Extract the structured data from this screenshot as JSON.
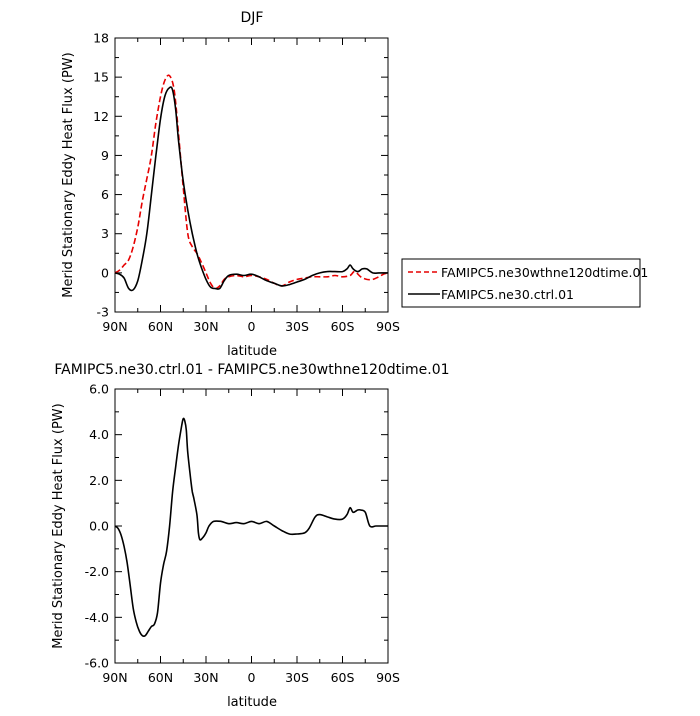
{
  "chart_data": [
    {
      "type": "line",
      "title": "DJF",
      "xlabel": "latitude",
      "ylabel": "Merid Stationary Eddy Heat Flux (PW)",
      "xlim": [
        90,
        -90
      ],
      "ylim": [
        -3,
        18
      ],
      "xticks": [
        90,
        60,
        30,
        0,
        -30,
        -60,
        -90
      ],
      "xtick_labels": [
        "90N",
        "60N",
        "30N",
        "0",
        "30S",
        "60S",
        "90S"
      ],
      "yticks": [
        -3,
        0,
        3,
        6,
        9,
        12,
        15,
        18
      ],
      "ytick_labels": [
        "-3",
        "0",
        "3",
        "6",
        "9",
        "12",
        "15",
        "18"
      ],
      "legend_position": "right",
      "series": [
        {
          "name": "FAMIPC5.ne30wthne120dtime.01",
          "color": "#e60000",
          "style": "dashed",
          "points": [
            [
              90,
              0
            ],
            [
              87,
              0.2
            ],
            [
              84,
              0.6
            ],
            [
              81,
              1.0
            ],
            [
              78,
              2.0
            ],
            [
              75,
              3.5
            ],
            [
              72,
              5.5
            ],
            [
              69,
              7.2
            ],
            [
              66,
              9.0
            ],
            [
              63,
              11.5
            ],
            [
              60,
              13.5
            ],
            [
              57,
              14.8
            ],
            [
              54,
              15.1
            ],
            [
              51,
              14.0
            ],
            [
              48,
              10.5
            ],
            [
              45,
              6.5
            ],
            [
              42,
              3.0
            ],
            [
              39,
              2.0
            ],
            [
              36,
              1.5
            ],
            [
              33,
              0.8
            ],
            [
              30,
              0
            ],
            [
              27,
              -0.8
            ],
            [
              24,
              -1.2
            ],
            [
              21,
              -1.0
            ],
            [
              18,
              -0.5
            ],
            [
              15,
              -0.3
            ],
            [
              10,
              -0.2
            ],
            [
              5,
              -0.3
            ],
            [
              0,
              -0.2
            ],
            [
              -5,
              -0.3
            ],
            [
              -10,
              -0.5
            ],
            [
              -15,
              -0.8
            ],
            [
              -20,
              -1.0
            ],
            [
              -25,
              -0.7
            ],
            [
              -30,
              -0.5
            ],
            [
              -35,
              -0.4
            ],
            [
              -40,
              -0.3
            ],
            [
              -45,
              -0.3
            ],
            [
              -50,
              -0.3
            ],
            [
              -55,
              -0.2
            ],
            [
              -60,
              -0.3
            ],
            [
              -65,
              -0.2
            ],
            [
              -68,
              0.1
            ],
            [
              -72,
              -0.3
            ],
            [
              -76,
              -0.5
            ],
            [
              -80,
              -0.5
            ],
            [
              -84,
              -0.3
            ],
            [
              -87,
              -0.1
            ],
            [
              -90,
              0
            ]
          ]
        },
        {
          "name": "FAMIPC5.ne30.ctrl.01",
          "color": "#000000",
          "style": "solid",
          "points": [
            [
              90,
              0
            ],
            [
              87,
              -0.1
            ],
            [
              84,
              -0.4
            ],
            [
              81,
              -1.2
            ],
            [
              78,
              -1.3
            ],
            [
              75,
              -0.6
            ],
            [
              72,
              1.0
            ],
            [
              69,
              3.0
            ],
            [
              66,
              6.0
            ],
            [
              63,
              9.0
            ],
            [
              60,
              11.8
            ],
            [
              57,
              13.6
            ],
            [
              54,
              14.2
            ],
            [
              52,
              14.0
            ],
            [
              50,
              12.5
            ],
            [
              48,
              10.0
            ],
            [
              45,
              7.0
            ],
            [
              42,
              4.8
            ],
            [
              39,
              3.0
            ],
            [
              36,
              1.5
            ],
            [
              33,
              0.4
            ],
            [
              30,
              -0.5
            ],
            [
              27,
              -1.1
            ],
            [
              24,
              -1.2
            ],
            [
              21,
              -1.2
            ],
            [
              18,
              -0.6
            ],
            [
              15,
              -0.2
            ],
            [
              10,
              -0.1
            ],
            [
              5,
              -0.2
            ],
            [
              0,
              -0.1
            ],
            [
              -5,
              -0.3
            ],
            [
              -10,
              -0.6
            ],
            [
              -15,
              -0.8
            ],
            [
              -20,
              -1.0
            ],
            [
              -25,
              -0.9
            ],
            [
              -30,
              -0.7
            ],
            [
              -35,
              -0.5
            ],
            [
              -40,
              -0.2
            ],
            [
              -45,
              0.0
            ],
            [
              -50,
              0.1
            ],
            [
              -55,
              0.1
            ],
            [
              -60,
              0.1
            ],
            [
              -63,
              0.3
            ],
            [
              -65,
              0.6
            ],
            [
              -67,
              0.3
            ],
            [
              -70,
              0.1
            ],
            [
              -73,
              0.3
            ],
            [
              -76,
              0.3
            ],
            [
              -80,
              0.0
            ],
            [
              -84,
              0.0
            ],
            [
              -87,
              0.0
            ],
            [
              -90,
              0
            ]
          ]
        }
      ]
    },
    {
      "type": "line",
      "title": "FAMIPC5.ne30.ctrl.01 - FAMIPC5.ne30wthne120dtime.01",
      "xlabel": "latitude",
      "ylabel": "Merid Stationary Eddy Heat Flux (PW)",
      "xlim": [
        90,
        -90
      ],
      "ylim": [
        -6,
        6
      ],
      "xticks": [
        90,
        60,
        30,
        0,
        -30,
        -60,
        -90
      ],
      "xtick_labels": [
        "90N",
        "60N",
        "30N",
        "0",
        "30S",
        "60S",
        "90S"
      ],
      "yticks": [
        -6,
        -4,
        -2,
        0,
        2,
        4,
        6
      ],
      "ytick_labels": [
        "-6.0",
        "-4.0",
        "-2.0",
        "0.0",
        "2.0",
        "4.0",
        "6.0"
      ],
      "series": [
        {
          "color": "#000000",
          "style": "solid",
          "points": [
            [
              90,
              0
            ],
            [
              88,
              -0.1
            ],
            [
              86,
              -0.4
            ],
            [
              84,
              -0.9
            ],
            [
              82,
              -1.6
            ],
            [
              80,
              -2.6
            ],
            [
              78,
              -3.6
            ],
            [
              76,
              -4.2
            ],
            [
              74,
              -4.6
            ],
            [
              72,
              -4.8
            ],
            [
              70,
              -4.8
            ],
            [
              68,
              -4.6
            ],
            [
              66,
              -4.4
            ],
            [
              64,
              -4.3
            ],
            [
              62,
              -3.8
            ],
            [
              60,
              -2.5
            ],
            [
              58,
              -1.7
            ],
            [
              56,
              -1.1
            ],
            [
              54,
              0.0
            ],
            [
              52,
              1.5
            ],
            [
              50,
              2.6
            ],
            [
              48,
              3.6
            ],
            [
              46,
              4.4
            ],
            [
              45,
              4.7
            ],
            [
              44,
              4.6
            ],
            [
              43,
              4.2
            ],
            [
              42,
              3.2
            ],
            [
              40,
              2.0
            ],
            [
              39,
              1.5
            ],
            [
              38,
              1.2
            ],
            [
              36,
              0.5
            ],
            [
              35,
              -0.3
            ],
            [
              34,
              -0.6
            ],
            [
              32,
              -0.5
            ],
            [
              30,
              -0.3
            ],
            [
              28,
              0.0
            ],
            [
              25,
              0.2
            ],
            [
              20,
              0.2
            ],
            [
              15,
              0.1
            ],
            [
              10,
              0.15
            ],
            [
              5,
              0.1
            ],
            [
              0,
              0.2
            ],
            [
              -5,
              0.1
            ],
            [
              -10,
              0.2
            ],
            [
              -15,
              0.0
            ],
            [
              -20,
              -0.2
            ],
            [
              -25,
              -0.35
            ],
            [
              -30,
              -0.35
            ],
            [
              -35,
              -0.3
            ],
            [
              -38,
              -0.1
            ],
            [
              -42,
              0.4
            ],
            [
              -45,
              0.5
            ],
            [
              -50,
              0.4
            ],
            [
              -55,
              0.3
            ],
            [
              -60,
              0.3
            ],
            [
              -63,
              0.5
            ],
            [
              -65,
              0.8
            ],
            [
              -67,
              0.6
            ],
            [
              -70,
              0.7
            ],
            [
              -72,
              0.7
            ],
            [
              -75,
              0.6
            ],
            [
              -78,
              0.0
            ],
            [
              -82,
              0.0
            ],
            [
              -86,
              0.0
            ],
            [
              -90,
              0.0
            ]
          ]
        }
      ]
    }
  ]
}
